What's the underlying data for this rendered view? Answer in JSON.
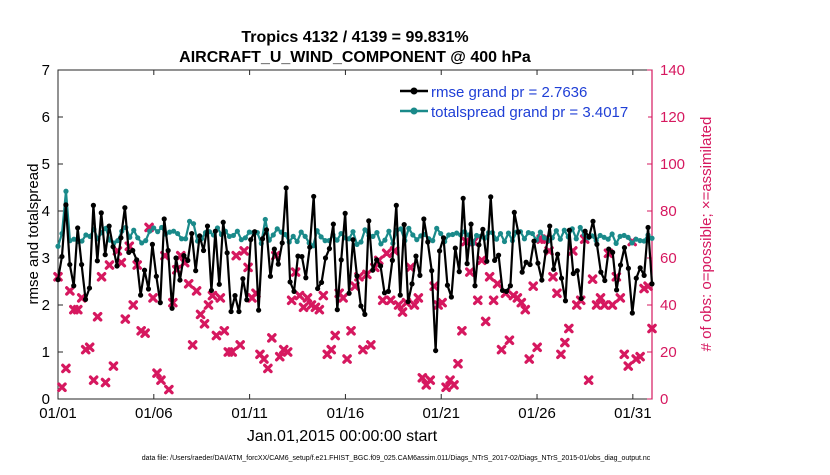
{
  "chart_data": {
    "type": "line",
    "title": "Tropics 4132 / 4139 = 99.831%",
    "subtitle": "AIRCRAFT_U_WIND_COMPONENT @ 400 hPa",
    "xlabel": "Jan.01,2015 00:00:00 start",
    "ylabel_left": "rmse and totalspread",
    "ylabel_right": "# of obs: o=possible; ×=assimilated",
    "footer": "data file: /Users/raeder/DAI/ATM_forcXX/CAM6_setup/f.e21.FHIST_BGC.f09_025.CAM6assim.011/Diags_NTrS_2017-02/Diags_NTrS_2015-01/obs_diag_output.nc",
    "xlim": [
      1,
      32
    ],
    "ylim_left": [
      0,
      7
    ],
    "ylim_right": [
      0,
      140
    ],
    "x_ticks": [
      1,
      6,
      11,
      16,
      21,
      26,
      31
    ],
    "x_tick_labels": [
      "01/01",
      "01/06",
      "01/11",
      "01/16",
      "01/21",
      "01/26",
      "01/31"
    ],
    "y_ticks_left": [
      "0",
      "1",
      "2",
      "3",
      "4",
      "5",
      "6",
      "7"
    ],
    "y_ticks_right": [
      "0",
      "20",
      "40",
      "60",
      "80",
      "100",
      "120",
      "140"
    ],
    "colors": {
      "rmse": "#000000",
      "spread": "#1a8a8a",
      "obs": "#d6185f",
      "legend_text": "#1f3fd6"
    },
    "series": [
      {
        "name": "rmse grand pr = 2.7636",
        "axis": "left",
        "values": [
          2.54,
          3.03,
          4.13,
          2.86,
          2.41,
          3.64,
          2.86,
          2.12,
          2.36,
          4.12,
          2.94,
          3.96,
          3.07,
          3.68,
          3.24,
          2.83,
          3.43,
          4.07,
          3.12,
          3.16,
          2.96,
          2.21,
          2.74,
          2.34,
          3.29,
          2.61,
          2.05,
          3.83,
          3.16,
          1.93,
          3.0,
          2.53,
          3.05,
          2.95,
          3.52,
          2.73,
          3.47,
          3.16,
          3.68,
          2.31,
          3.57,
          2.44,
          3.76,
          3.11,
          1.86,
          2.2,
          1.86,
          2.56,
          2.11,
          3.39,
          3.56,
          1.89,
          3.41,
          3.6,
          2.61,
          3.19,
          2.87,
          3.32,
          4.49,
          2.49,
          2.29,
          3.04,
          3.03,
          2.58,
          3.23,
          4.31,
          2.35,
          2.48,
          3.0,
          3.2,
          3.72,
          1.9,
          2.96,
          3.95,
          2.25,
          3.39,
          2.62,
          1.98,
          1.8,
          3.79,
          2.74,
          2.96,
          2.83,
          2.26,
          2.29,
          2.95,
          4.12,
          2.21,
          3.71,
          2.07,
          2.45,
          3.04,
          2.63,
          3.83,
          3.34,
          2.73,
          1.03,
          3.15,
          3.43,
          2.42,
          2.17,
          3.21,
          2.71,
          4.27,
          2.88,
          3.72,
          2.41,
          3.28,
          3.61,
          2.93,
          4.3,
          2.95,
          3.06,
          2.31,
          2.29,
          2.41,
          3.97,
          3.55,
          2.7,
          2.91,
          2.86,
          3.36,
          2.89,
          2.53,
          3.14,
          3.68,
          2.76,
          3.08,
          2.57,
          2.09,
          3.59,
          2.67,
          2.73,
          2.14,
          3.57,
          3.45,
          3.78,
          3.29,
          2.7,
          2.52,
          3.19,
          3.12,
          2.32,
          2.85,
          3.22,
          2.78,
          1.83,
          2.57,
          2.79,
          2.63,
          3.65,
          2.45
        ]
      },
      {
        "name": "totalspread grand pr = 3.4017",
        "axis": "left",
        "values": [
          3.25,
          3.52,
          4.42,
          3.37,
          3.4,
          3.35,
          3.36,
          3.49,
          3.46,
          3.61,
          3.41,
          3.54,
          3.63,
          3.38,
          3.32,
          3.37,
          3.57,
          3.65,
          3.44,
          3.59,
          3.43,
          3.32,
          3.37,
          3.57,
          3.64,
          3.56,
          3.65,
          3.51,
          3.55,
          3.57,
          3.52,
          3.41,
          3.41,
          3.78,
          3.73,
          3.36,
          3.41,
          3.54,
          3.56,
          3.49,
          3.64,
          3.5,
          3.57,
          3.46,
          3.48,
          3.57,
          3.39,
          3.43,
          3.55,
          3.54,
          3.54,
          3.31,
          3.82,
          3.38,
          3.49,
          3.62,
          3.55,
          3.5,
          3.34,
          3.46,
          3.35,
          3.55,
          3.46,
          3.32,
          3.26,
          3.58,
          3.45,
          3.37,
          3.37,
          3.49,
          3.38,
          3.52,
          3.43,
          3.41,
          3.56,
          3.29,
          3.34,
          3.6,
          3.48,
          3.46,
          3.54,
          3.3,
          3.38,
          3.57,
          3.31,
          3.59,
          3.62,
          3.37,
          3.63,
          3.49,
          3.39,
          3.47,
          3.5,
          3.41,
          3.37,
          3.63,
          3.52,
          3.35,
          3.49,
          3.5,
          3.53,
          3.49,
          3.56,
          3.49,
          3.3,
          3.48,
          3.46,
          3.42,
          3.54,
          3.54,
          3.4,
          3.52,
          3.35,
          3.53,
          3.37,
          3.55,
          3.56,
          3.41,
          3.54,
          3.52,
          3.38,
          3.55,
          3.43,
          3.37,
          3.43,
          3.58,
          3.4,
          3.59,
          3.45,
          3.62,
          3.41,
          3.65,
          3.5,
          3.43,
          3.47,
          3.37,
          3.48,
          3.44,
          3.4,
          3.51,
          3.31,
          3.46,
          3.48,
          3.44,
          3.32,
          3.4,
          3.37,
          3.36,
          3.49,
          3.42
        ]
      },
      {
        "name": "obs assimilated",
        "axis": "right",
        "values": [
          52,
          5,
          13,
          46,
          38,
          38,
          43,
          21,
          22,
          8,
          35,
          52,
          7,
          57,
          14,
          63,
          58,
          34,
          65,
          40,
          57,
          29,
          28,
          73,
          43,
          11,
          8,
          61,
          4,
          41,
          55,
          61,
          58,
          49,
          23,
          46,
          36,
          32,
          40,
          44,
          27,
          43,
          29,
          20,
          20,
          61,
          23,
          63,
          56,
          43,
          45,
          19,
          17,
          13,
          26,
          61,
          18,
          21,
          20,
          42,
          54,
          44,
          39,
          43,
          40,
          39,
          38,
          44,
          19,
          21,
          27,
          45,
          43,
          17,
          29,
          48,
          52,
          21,
          53,
          23,
          56,
          59,
          42,
          62,
          42,
          63,
          40,
          37,
          41,
          56,
          40,
          43,
          9,
          6,
          8,
          48,
          40,
          41,
          5,
          8,
          6,
          15,
          29,
          67,
          54,
          67,
          42,
          59,
          33,
          52,
          42,
          49,
          21,
          45,
          25,
          44,
          43,
          41,
          38,
          17,
          48,
          22,
          68,
          68,
          63,
          52,
          45,
          19,
          24,
          30,
          63,
          40,
          42,
          68,
          8,
          51,
          40,
          43,
          40,
          62,
          40,
          52,
          43,
          19,
          14,
          67,
          17,
          18,
          47,
          48,
          30
        ]
      }
    ]
  }
}
